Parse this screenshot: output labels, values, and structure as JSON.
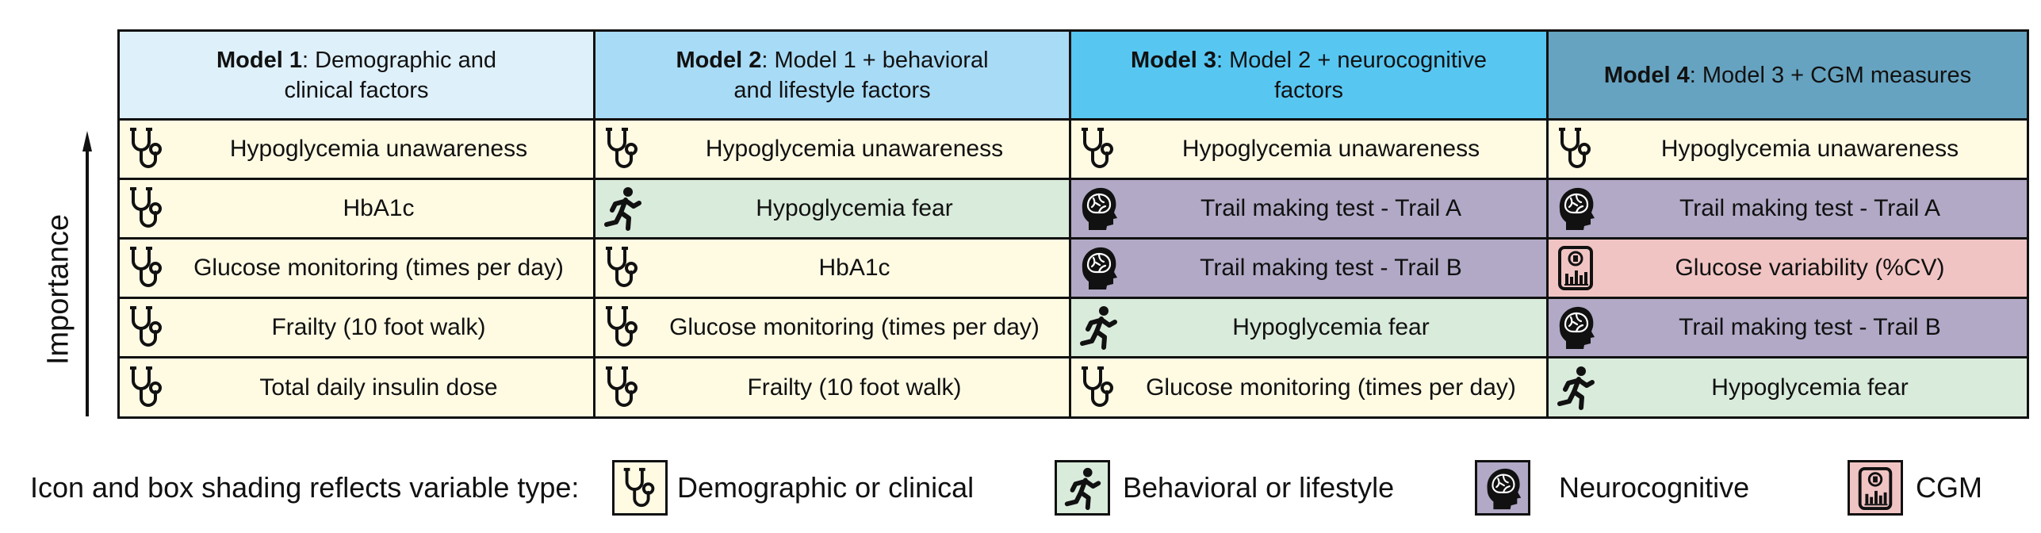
{
  "axis": {
    "label": "Importance"
  },
  "columns": [
    {
      "bold": "Model 1",
      "rest": ": Demographic and\nclinical factors",
      "style": "h1",
      "rows": [
        {
          "label": "Hypoglycemia unawareness",
          "type": "clinical"
        },
        {
          "label": "HbA1c",
          "type": "clinical"
        },
        {
          "label": "Glucose monitoring (times per day)",
          "type": "clinical"
        },
        {
          "label": "Frailty (10 foot walk)",
          "type": "clinical"
        },
        {
          "label": "Total daily insulin dose",
          "type": "clinical"
        }
      ]
    },
    {
      "bold": "Model 2",
      "rest": ": Model 1 + behavioral\nand lifestyle factors",
      "style": "h2",
      "rows": [
        {
          "label": "Hypoglycemia unawareness",
          "type": "clinical"
        },
        {
          "label": "Hypoglycemia fear",
          "type": "behavioral"
        },
        {
          "label": "HbA1c",
          "type": "clinical"
        },
        {
          "label": "Glucose monitoring (times per day)",
          "type": "clinical"
        },
        {
          "label": "Frailty (10 foot walk)",
          "type": "clinical"
        }
      ]
    },
    {
      "bold": "Model 3",
      "rest": ": Model 2 + neurocognitive\nfactors",
      "style": "h3",
      "rows": [
        {
          "label": "Hypoglycemia unawareness",
          "type": "clinical"
        },
        {
          "label": "Trail making test - Trail A",
          "type": "neurocognitive"
        },
        {
          "label": "Trail making test - Trail B",
          "type": "neurocognitive"
        },
        {
          "label": "Hypoglycemia fear",
          "type": "behavioral"
        },
        {
          "label": "Glucose monitoring (times per day)",
          "type": "clinical"
        }
      ]
    },
    {
      "bold": "Model 4",
      "rest": ": Model 3 + CGM measures",
      "style": "h4",
      "rows": [
        {
          "label": "Hypoglycemia unawareness",
          "type": "clinical"
        },
        {
          "label": "Trail making test - Trail A",
          "type": "neurocognitive"
        },
        {
          "label": "Glucose variability (%CV)",
          "type": "cgm"
        },
        {
          "label": "Trail making test - Trail B",
          "type": "neurocognitive"
        },
        {
          "label": "Hypoglycemia fear",
          "type": "behavioral"
        }
      ]
    }
  ],
  "legend": {
    "intro": "Icon and box shading reflects variable type:",
    "items": [
      {
        "type": "clinical",
        "label": "Demographic or clinical",
        "color": "#fffbe3",
        "icon": "stethoscope-icon"
      },
      {
        "type": "behavioral",
        "label": "Behavioral or lifestyle",
        "color": "#d9ebdb",
        "icon": "running-person-icon"
      },
      {
        "type": "neurocognitive",
        "label": "Neurocognitive",
        "color": "#b1a9c6",
        "icon": "brain-head-icon"
      },
      {
        "type": "cgm",
        "label": "CGM",
        "color": "#f1c4c4",
        "icon": "cgm-device-icon"
      }
    ]
  }
}
